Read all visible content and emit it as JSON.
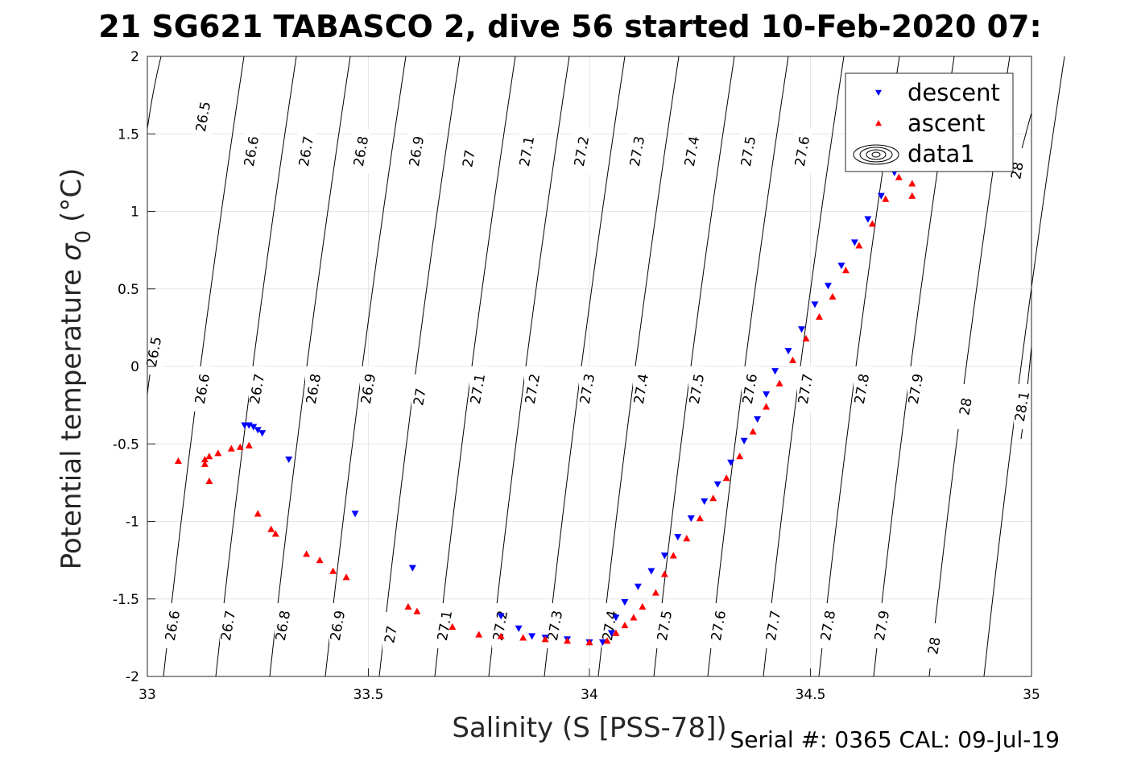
{
  "chart_data": {
    "type": "scatter",
    "title": "21 SG621 TABASCO 2, dive 56 started 10-Feb-2020 07:",
    "xlabel": "Salinity (S [PSS-78])",
    "ylabel": "Potential temperature",
    "ylabel_symbol": "σ",
    "ylabel_sub": "0",
    "ylabel_unit": "(°C)",
    "xlim": [
      33,
      35
    ],
    "ylim": [
      -2,
      2
    ],
    "xticks": [
      "33",
      "33.5",
      "34",
      "34.5",
      "35"
    ],
    "yticks": [
      "-2",
      "-1.5",
      "-1",
      "-0.5",
      "0",
      "0.5",
      "1",
      "1.5",
      "2"
    ],
    "grid": true,
    "legend_position": "top-right",
    "legend": [
      {
        "label": "descent",
        "marker": "triangle-down",
        "color": "#0000ff"
      },
      {
        "label": "ascent",
        "marker": "triangle-up",
        "color": "#ff0000"
      },
      {
        "label": "data1",
        "marker": "contour",
        "color": "#000000"
      }
    ],
    "series": [
      {
        "name": "descent",
        "color": "#0000ff",
        "marker": "triangle-down",
        "points": [
          [
            33.22,
            -0.38
          ],
          [
            33.23,
            -0.38
          ],
          [
            33.24,
            -0.39
          ],
          [
            33.25,
            -0.41
          ],
          [
            33.26,
            -0.43
          ],
          [
            33.32,
            -0.6
          ],
          [
            33.47,
            -0.95
          ],
          [
            33.6,
            -1.3
          ],
          [
            33.8,
            -1.61
          ],
          [
            33.84,
            -1.69
          ],
          [
            33.87,
            -1.74
          ],
          [
            33.9,
            -1.75
          ],
          [
            33.95,
            -1.76
          ],
          [
            34.0,
            -1.78
          ],
          [
            34.03,
            -1.78
          ],
          [
            34.05,
            -1.72
          ],
          [
            34.06,
            -1.62
          ],
          [
            34.08,
            -1.52
          ],
          [
            34.11,
            -1.42
          ],
          [
            34.14,
            -1.32
          ],
          [
            34.17,
            -1.22
          ],
          [
            34.2,
            -1.1
          ],
          [
            34.23,
            -0.98
          ],
          [
            34.26,
            -0.87
          ],
          [
            34.29,
            -0.76
          ],
          [
            34.32,
            -0.62
          ],
          [
            34.35,
            -0.48
          ],
          [
            34.38,
            -0.34
          ],
          [
            34.4,
            -0.18
          ],
          [
            34.42,
            -0.03
          ],
          [
            34.45,
            0.1
          ],
          [
            34.48,
            0.24
          ],
          [
            34.51,
            0.4
          ],
          [
            34.54,
            0.52
          ],
          [
            34.57,
            0.65
          ],
          [
            34.6,
            0.8
          ],
          [
            34.63,
            0.95
          ],
          [
            34.66,
            1.1
          ],
          [
            34.69,
            1.25
          ]
        ]
      },
      {
        "name": "ascent",
        "color": "#ff0000",
        "marker": "triangle-up",
        "points": [
          [
            33.07,
            -0.61
          ],
          [
            33.13,
            -0.63
          ],
          [
            33.13,
            -0.6
          ],
          [
            33.14,
            -0.58
          ],
          [
            33.14,
            -0.74
          ],
          [
            33.16,
            -0.56
          ],
          [
            33.19,
            -0.53
          ],
          [
            33.21,
            -0.52
          ],
          [
            33.23,
            -0.51
          ],
          [
            33.25,
            -0.95
          ],
          [
            33.28,
            -1.05
          ],
          [
            33.29,
            -1.08
          ],
          [
            33.36,
            -1.21
          ],
          [
            33.39,
            -1.25
          ],
          [
            33.42,
            -1.32
          ],
          [
            33.45,
            -1.36
          ],
          [
            33.59,
            -1.55
          ],
          [
            33.61,
            -1.58
          ],
          [
            33.69,
            -1.68
          ],
          [
            33.75,
            -1.73
          ],
          [
            33.8,
            -1.74
          ],
          [
            33.85,
            -1.75
          ],
          [
            33.9,
            -1.76
          ],
          [
            33.95,
            -1.77
          ],
          [
            34.0,
            -1.78
          ],
          [
            34.04,
            -1.77
          ],
          [
            34.06,
            -1.72
          ],
          [
            34.08,
            -1.67
          ],
          [
            34.1,
            -1.62
          ],
          [
            34.12,
            -1.55
          ],
          [
            34.15,
            -1.46
          ],
          [
            34.17,
            -1.34
          ],
          [
            34.19,
            -1.22
          ],
          [
            34.22,
            -1.11
          ],
          [
            34.25,
            -0.98
          ],
          [
            34.28,
            -0.85
          ],
          [
            34.31,
            -0.72
          ],
          [
            34.34,
            -0.58
          ],
          [
            34.37,
            -0.42
          ],
          [
            34.4,
            -0.26
          ],
          [
            34.43,
            -0.11
          ],
          [
            34.46,
            0.04
          ],
          [
            34.49,
            0.18
          ],
          [
            34.52,
            0.32
          ],
          [
            34.55,
            0.45
          ],
          [
            34.58,
            0.62
          ],
          [
            34.61,
            0.78
          ],
          [
            34.64,
            0.92
          ],
          [
            34.67,
            1.08
          ],
          [
            34.7,
            1.22
          ],
          [
            34.73,
            1.18
          ],
          [
            34.73,
            1.1
          ]
        ]
      }
    ],
    "contour_labels_top": [
      "26.5",
      "26.6",
      "26.7",
      "26.8",
      "26.9",
      "27",
      "27.1",
      "27.2",
      "27.3",
      "27.4",
      "27.5",
      "27.6",
      "28"
    ],
    "contour_labels_mid": [
      "26.5",
      "26.6",
      "26.7",
      "26.8",
      "26.9",
      "27",
      "27.1",
      "27.2",
      "27.3",
      "27.4",
      "27.5",
      "27.6",
      "27.7",
      "27.8",
      "27.9",
      "28",
      "28.1"
    ],
    "contour_labels_bottom": [
      "26.6",
      "26.7",
      "26.8",
      "26.9",
      "27",
      "27.1",
      "27.2",
      "27.3",
      "27.4",
      "27.5",
      "27.6",
      "27.7",
      "27.8",
      "27.9",
      "28"
    ]
  },
  "footer": "Serial #: 0365  CAL: 09-Jul-19"
}
